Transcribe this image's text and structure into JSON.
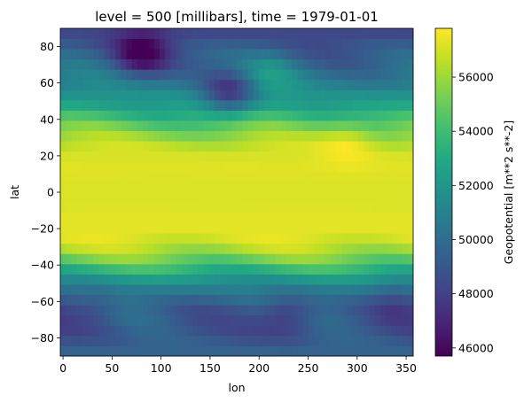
{
  "chart_data": {
    "type": "heatmap",
    "title": "level = 500 [millibars], time = 1979-01-01",
    "xlabel": "lon",
    "ylabel": "lat",
    "xlim": [
      -2.8125,
      357.1875
    ],
    "ylim": [
      -90,
      90
    ],
    "x_ticks": [
      0,
      50,
      100,
      150,
      200,
      250,
      300,
      350
    ],
    "x_tick_labels": [
      "0",
      "50",
      "100",
      "150",
      "200",
      "250",
      "300",
      "350"
    ],
    "y_ticks": [
      -80,
      -60,
      -40,
      -20,
      0,
      20,
      40,
      60,
      80
    ],
    "y_tick_labels": [
      "−80",
      "−60",
      "−40",
      "−20",
      "0",
      "20",
      "40",
      "60",
      "80"
    ],
    "colormap": "viridis",
    "colorbar": {
      "label": "Geopotential [m**2 s**-2]",
      "vmin": 45700,
      "vmax": 57800,
      "ticks": [
        46000,
        48000,
        50000,
        52000,
        54000,
        56000
      ],
      "tick_labels": [
        "46000",
        "48000",
        "50000",
        "52000",
        "54000",
        "56000"
      ]
    },
    "grid_resolution_deg": 5.625,
    "features": {
      "zonal_profile": [
        {
          "lat": -87.19,
          "value": 49500
        },
        {
          "lat": -81.56,
          "value": 49200
        },
        {
          "lat": -75.94,
          "value": 49000
        },
        {
          "lat": -70.31,
          "value": 49200
        },
        {
          "lat": -64.69,
          "value": 49400
        },
        {
          "lat": -59.06,
          "value": 50000
        },
        {
          "lat": -53.44,
          "value": 50800
        },
        {
          "lat": -47.81,
          "value": 52000
        },
        {
          "lat": -42.19,
          "value": 53600
        },
        {
          "lat": -36.56,
          "value": 55200
        },
        {
          "lat": -30.94,
          "value": 56400
        },
        {
          "lat": -25.31,
          "value": 57100
        },
        {
          "lat": -19.69,
          "value": 57300
        },
        {
          "lat": -14.06,
          "value": 57300
        },
        {
          "lat": -8.44,
          "value": 57200
        },
        {
          "lat": -2.81,
          "value": 57150
        },
        {
          "lat": 2.81,
          "value": 57150
        },
        {
          "lat": 8.44,
          "value": 57200
        },
        {
          "lat": 14.06,
          "value": 57250
        },
        {
          "lat": 19.69,
          "value": 57100
        },
        {
          "lat": 25.31,
          "value": 56700
        },
        {
          "lat": 30.94,
          "value": 55900
        },
        {
          "lat": 36.56,
          "value": 54900
        },
        {
          "lat": 42.19,
          "value": 53700
        },
        {
          "lat": 47.81,
          "value": 52600
        },
        {
          "lat": 53.44,
          "value": 51800
        },
        {
          "lat": 59.06,
          "value": 51000
        },
        {
          "lat": 64.69,
          "value": 50400
        },
        {
          "lat": 70.31,
          "value": 49800
        },
        {
          "lat": 75.94,
          "value": 49300
        },
        {
          "lat": 81.56,
          "value": 48800
        },
        {
          "lat": 87.19,
          "value": 48300
        }
      ],
      "anomalies": [
        {
          "lon": 80,
          "lat": 76,
          "value": 45800
        },
        {
          "lon": 170,
          "lat": 54,
          "value": 47800
        },
        {
          "lon": 230,
          "lat": -66,
          "value": 47600
        },
        {
          "lon": 130,
          "lat": -70,
          "value": 48900
        },
        {
          "lon": 30,
          "lat": -62,
          "value": 48600
        },
        {
          "lon": 340,
          "lat": -60,
          "value": 48700
        },
        {
          "lon": 290,
          "lat": 30,
          "value": 57300
        },
        {
          "lon": 210,
          "lat": 66,
          "value": 51800
        }
      ]
    }
  }
}
